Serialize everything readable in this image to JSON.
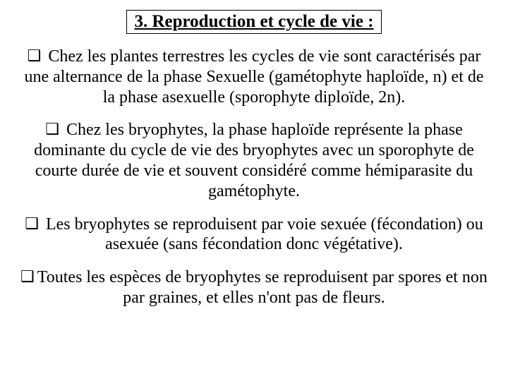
{
  "title": "3. Reproduction et cycle de vie :",
  "bullets": {
    "symbol": "❑"
  },
  "paragraphs": {
    "p1": " Chez les plantes terrestres les cycles de vie sont caractérisés par une alternance de la phase Sexuelle (gamétophyte haploïde, n) et de la phase asexuelle (sporophyte diploïde, 2n).",
    "p2": " Chez les bryophytes, la phase haploïde représente la phase dominante du cycle de vie des bryophytes avec un sporophyte de courte durée de vie et souvent considéré comme hémiparasite du gamétophyte.",
    "p3": " Les bryophytes se reproduisent par voie sexuée (fécondation) ou asexuée (sans fécondation donc végétative).",
    "p4": "Toutes les espèces de bryophytes se reproduisent par spores et non par graines, et elles n'ont pas de fleurs."
  },
  "style": {
    "background_color": "#ffffff",
    "text_color": "#000000",
    "font_family": "Times New Roman",
    "title_fontsize": 25,
    "body_fontsize": 24
  }
}
